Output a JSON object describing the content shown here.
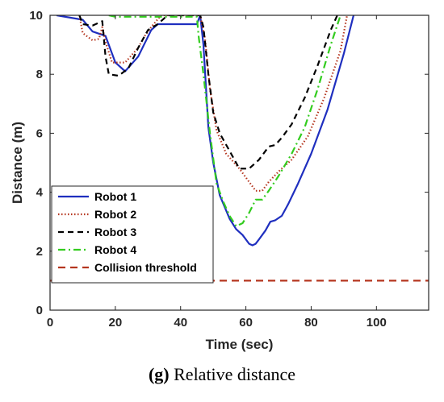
{
  "chart_data": {
    "type": "line",
    "xlabel": "Time (sec)",
    "ylabel": "Distance (m)",
    "xlim": [
      0,
      116
    ],
    "ylim": [
      0,
      10
    ],
    "xticks": [
      0,
      20,
      40,
      60,
      80,
      100
    ],
    "yticks": [
      0,
      2,
      4,
      6,
      8,
      10
    ],
    "grid": false,
    "legend_position": "lower-left",
    "series": [
      {
        "name": "Robot 1",
        "color": "#1f2fbf",
        "dash": "solid",
        "points": [
          [
            2,
            10
          ],
          [
            10,
            9.85
          ],
          [
            13,
            9.45
          ],
          [
            17,
            9.3
          ],
          [
            20,
            8.4
          ],
          [
            23,
            8.1
          ],
          [
            27,
            8.6
          ],
          [
            31,
            9.5
          ],
          [
            33,
            9.7
          ],
          [
            45,
            9.7
          ],
          [
            46,
            10
          ],
          [
            47,
            9.0
          ],
          [
            48.5,
            6.2
          ],
          [
            50,
            5.0
          ],
          [
            52,
            3.9
          ],
          [
            55,
            3.1
          ],
          [
            57,
            2.75
          ],
          [
            59,
            2.55
          ],
          [
            61,
            2.25
          ],
          [
            62,
            2.2
          ],
          [
            63,
            2.25
          ],
          [
            64,
            2.4
          ],
          [
            66,
            2.7
          ],
          [
            67.5,
            3.0
          ],
          [
            69,
            3.05
          ],
          [
            71,
            3.2
          ],
          [
            73,
            3.6
          ],
          [
            76,
            4.3
          ],
          [
            80,
            5.3
          ],
          [
            85,
            6.8
          ],
          [
            90,
            8.7
          ],
          [
            93,
            10
          ]
        ]
      },
      {
        "name": "Robot 2",
        "color": "#b5361f",
        "dash": "dotted",
        "points": [
          [
            9,
            10
          ],
          [
            10,
            9.4
          ],
          [
            13,
            9.15
          ],
          [
            15,
            9.2
          ],
          [
            16,
            9.6
          ],
          [
            17,
            9.1
          ],
          [
            19,
            8.4
          ],
          [
            23,
            8.4
          ],
          [
            27,
            8.9
          ],
          [
            29,
            9.3
          ],
          [
            31,
            9.6
          ],
          [
            34,
            10
          ],
          [
            46,
            10
          ],
          [
            47.5,
            9.2
          ],
          [
            49,
            7.5
          ],
          [
            51,
            6.1
          ],
          [
            54,
            5.3
          ],
          [
            58,
            4.8
          ],
          [
            61,
            4.35
          ],
          [
            63,
            4.05
          ],
          [
            65,
            4.05
          ],
          [
            67,
            4.35
          ],
          [
            70,
            4.7
          ],
          [
            74,
            5.1
          ],
          [
            79,
            5.9
          ],
          [
            84,
            7.2
          ],
          [
            89,
            8.8
          ],
          [
            91,
            10
          ]
        ]
      },
      {
        "name": "Robot 3",
        "color": "#000000",
        "dash": "dashed",
        "points": [
          [
            9,
            10
          ],
          [
            10,
            9.7
          ],
          [
            13,
            9.65
          ],
          [
            16,
            9.8
          ],
          [
            17,
            8.6
          ],
          [
            18,
            8.0
          ],
          [
            21,
            7.95
          ],
          [
            24,
            8.2
          ],
          [
            27,
            8.9
          ],
          [
            30,
            9.5
          ],
          [
            33,
            9.7
          ],
          [
            36,
            10
          ],
          [
            46,
            10
          ],
          [
            47,
            9.6
          ],
          [
            48.5,
            8.0
          ],
          [
            50,
            6.7
          ],
          [
            52,
            6.0
          ],
          [
            55,
            5.4
          ],
          [
            58,
            4.8
          ],
          [
            61,
            4.8
          ],
          [
            64,
            5.1
          ],
          [
            67,
            5.55
          ],
          [
            69,
            5.6
          ],
          [
            71,
            5.85
          ],
          [
            74,
            6.3
          ],
          [
            78,
            7.2
          ],
          [
            82,
            8.3
          ],
          [
            86,
            9.5
          ],
          [
            88,
            10
          ]
        ]
      },
      {
        "name": "Robot 4",
        "color": "#33cc1f",
        "dash": "dashdot",
        "points": [
          [
            18,
            10
          ],
          [
            20,
            9.95
          ],
          [
            45,
            9.95
          ],
          [
            45.5,
            9.3
          ],
          [
            47,
            8.0
          ],
          [
            49,
            6.0
          ],
          [
            51,
            4.3
          ],
          [
            53,
            3.7
          ],
          [
            55,
            3.2
          ],
          [
            57,
            2.85
          ],
          [
            59,
            2.95
          ],
          [
            61,
            3.3
          ],
          [
            63,
            3.75
          ],
          [
            65,
            3.75
          ],
          [
            67,
            4.05
          ],
          [
            70,
            4.55
          ],
          [
            74,
            5.3
          ],
          [
            78,
            6.2
          ],
          [
            82,
            7.5
          ],
          [
            86,
            9.0
          ],
          [
            89,
            10
          ]
        ]
      },
      {
        "name": "Collision threshold",
        "color": "#b5361f",
        "dash": "longdash",
        "points": [
          [
            0,
            1
          ],
          [
            116,
            1
          ]
        ]
      }
    ]
  },
  "caption": {
    "tag": "(g)",
    "text": "Relative distance"
  }
}
